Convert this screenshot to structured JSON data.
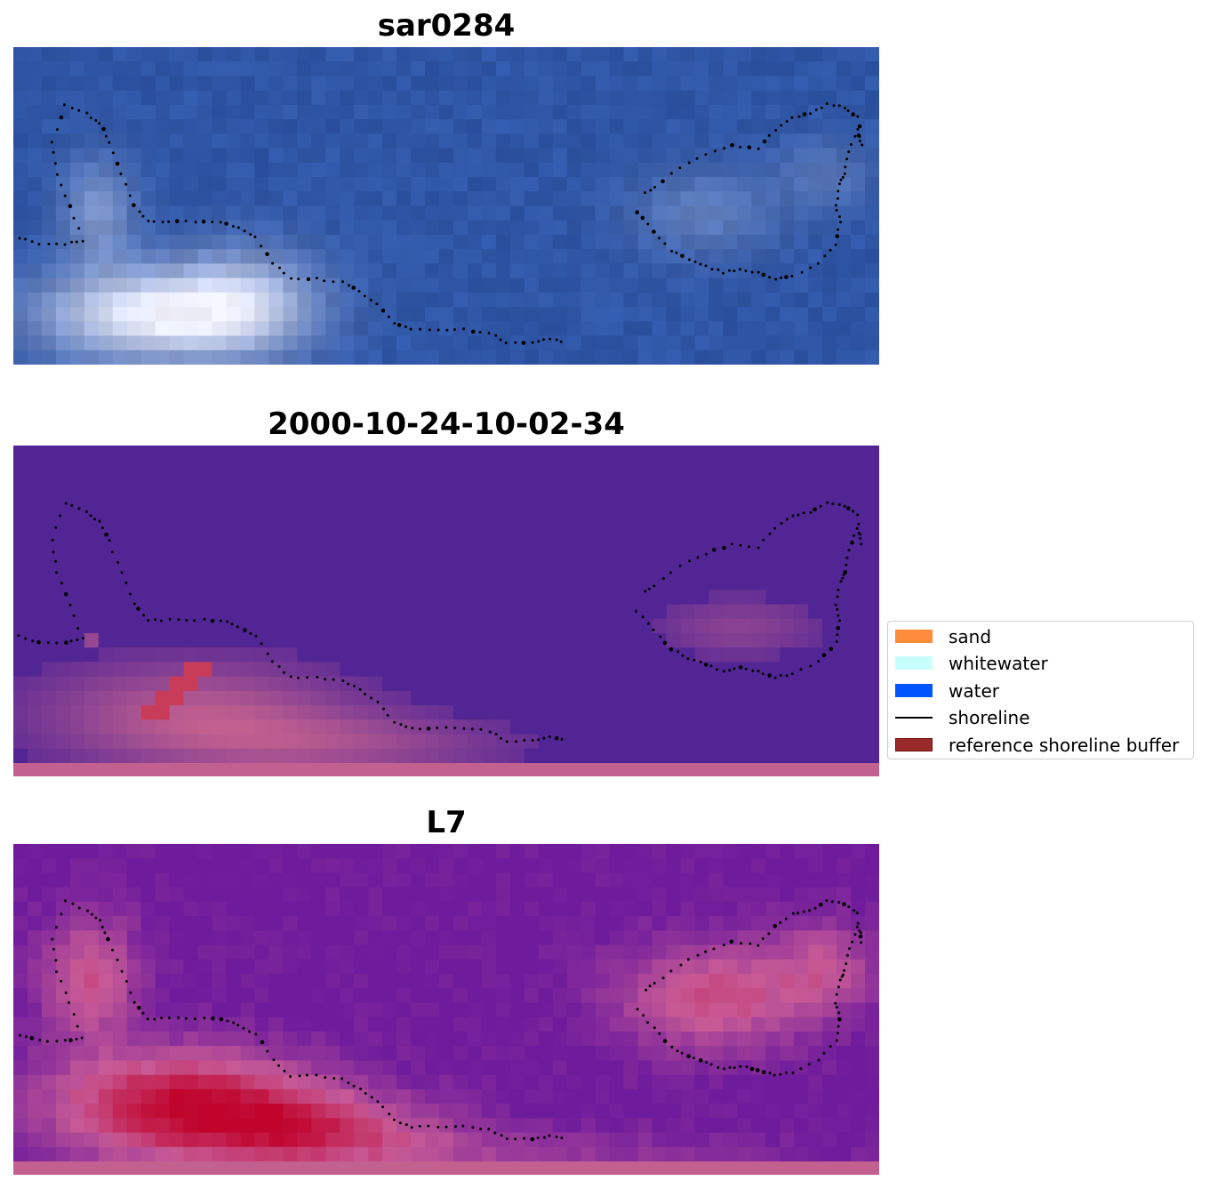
{
  "panels": [
    {
      "title": "sar0284",
      "kind": "rgb"
    },
    {
      "title": "2000-10-24-10-02-34",
      "kind": "classified"
    },
    {
      "title": "L7",
      "kind": "index"
    }
  ],
  "legend": {
    "items": [
      {
        "label": "sand",
        "color": "#ff8c3b",
        "type": "patch"
      },
      {
        "label": "whitewater",
        "color": "#c8fffd",
        "type": "patch"
      },
      {
        "label": "water",
        "color": "#0055ff",
        "type": "patch"
      },
      {
        "label": "shoreline",
        "color": "#000000",
        "type": "line"
      },
      {
        "label": "reference shoreline buffer",
        "color": "#9a2a2a",
        "type": "patch"
      }
    ]
  },
  "colors": {
    "rgb_water": "#2f56a6",
    "rgb_foam": "#f0f2ff",
    "class_water": "#522595",
    "class_buffer": "#c2608f",
    "index_low": "#6e1b9c",
    "index_high": "#c0042c",
    "shoreline_dots": "#000000"
  }
}
